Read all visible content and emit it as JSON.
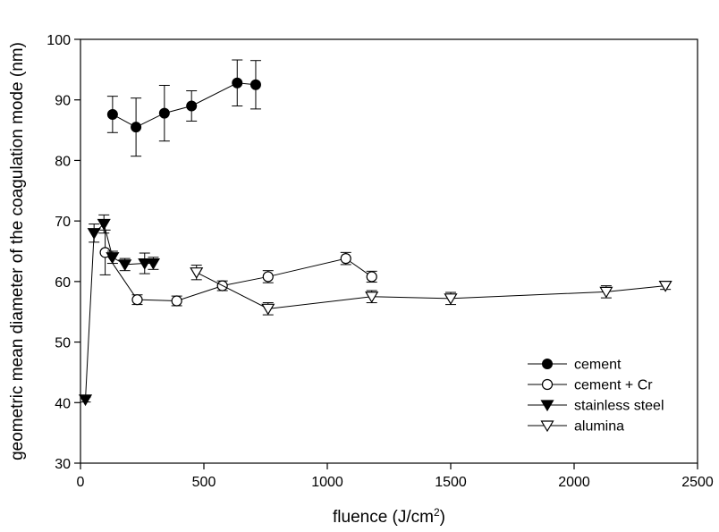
{
  "chart_data": {
    "type": "scatter",
    "xlabel": "fluence (J/cm",
    "xlabel_sup": "2",
    "xlabel_end": ")",
    "ylabel": "geometric mean diameter of the coagulation mode (nm)",
    "xlim": [
      0,
      2500
    ],
    "ylim": [
      30,
      100
    ],
    "xticks": [
      0,
      500,
      1000,
      1500,
      2000,
      2500
    ],
    "yticks": [
      30,
      40,
      50,
      60,
      70,
      80,
      90,
      100
    ],
    "grid": false,
    "legend_position": "bottom-right",
    "series": [
      {
        "name": "cement",
        "marker": "filled-circle",
        "points": [
          {
            "x": 130,
            "y": 87.6,
            "err": 3.0
          },
          {
            "x": 225,
            "y": 85.5,
            "err": 4.8
          },
          {
            "x": 340,
            "y": 87.8,
            "err": 4.6
          },
          {
            "x": 450,
            "y": 89.0,
            "err": 2.5
          },
          {
            "x": 635,
            "y": 92.8,
            "err": 3.8
          },
          {
            "x": 710,
            "y": 92.5,
            "err": 4.0
          }
        ]
      },
      {
        "name": "cement + Cr",
        "marker": "open-circle",
        "points": [
          {
            "x": 100,
            "y": 64.8,
            "err": 3.7
          },
          {
            "x": 230,
            "y": 57.0,
            "err": 0.8
          },
          {
            "x": 390,
            "y": 56.8,
            "err": 0.8
          },
          {
            "x": 575,
            "y": 59.3,
            "err": 0.8
          },
          {
            "x": 760,
            "y": 60.8,
            "err": 1.0
          },
          {
            "x": 1075,
            "y": 63.8,
            "err": 1.0
          },
          {
            "x": 1180,
            "y": 60.8,
            "err": 0.9
          }
        ]
      },
      {
        "name": "stainless steel",
        "marker": "filled-triangle-down",
        "points": [
          {
            "x": 20,
            "y": 40.5,
            "err": 0.4
          },
          {
            "x": 55,
            "y": 68.0,
            "err": 1.5
          },
          {
            "x": 95,
            "y": 69.5,
            "err": 1.5
          },
          {
            "x": 130,
            "y": 64.0,
            "err": 1.0
          },
          {
            "x": 180,
            "y": 62.8,
            "err": 1.0
          },
          {
            "x": 260,
            "y": 63.0,
            "err": 1.7
          },
          {
            "x": 295,
            "y": 63.0,
            "err": 1.0
          }
        ]
      },
      {
        "name": "alumina",
        "marker": "open-triangle-down",
        "points": [
          {
            "x": 470,
            "y": 61.5,
            "err": 1.2
          },
          {
            "x": 760,
            "y": 55.5,
            "err": 1.0
          },
          {
            "x": 1180,
            "y": 57.5,
            "err": 1.0
          },
          {
            "x": 1500,
            "y": 57.2,
            "err": 1.0
          },
          {
            "x": 2130,
            "y": 58.3,
            "err": 1.0
          },
          {
            "x": 2370,
            "y": 59.3,
            "err": 0.6
          }
        ]
      }
    ]
  }
}
